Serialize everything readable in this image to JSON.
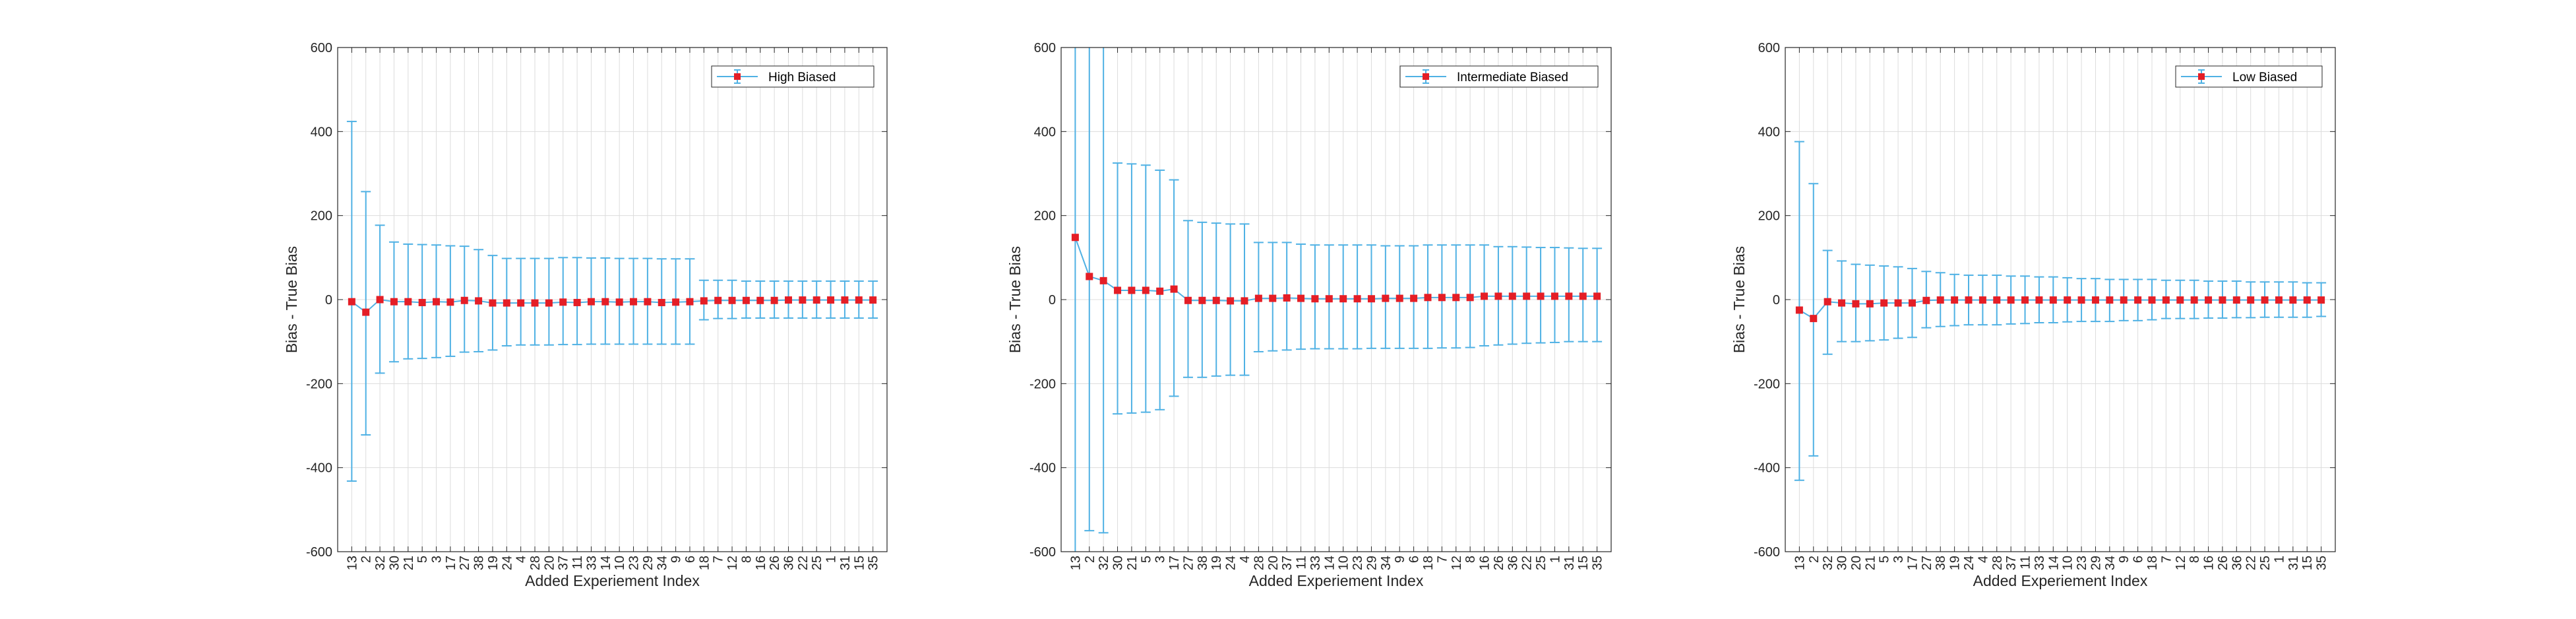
{
  "colors": {
    "errorbar": "#4fb1e4",
    "marker": "#e41e26",
    "axes": "#262626",
    "grid": "#dcdcdc",
    "background": "#ffffff"
  },
  "chart_data": [
    {
      "type": "line",
      "subtype": "errorbar",
      "xlabel": "Added Experiement Index",
      "ylabel": "Bias - True Bias",
      "ylim": [
        -600,
        600
      ],
      "yticks": [
        -600,
        -400,
        -200,
        0,
        200,
        400,
        600
      ],
      "grid": true,
      "legend_position": "top-right",
      "categories": [
        "13",
        "2",
        "32",
        "30",
        "21",
        "5",
        "3",
        "17",
        "27",
        "38",
        "19",
        "24",
        "4",
        "28",
        "20",
        "37",
        "11",
        "33",
        "14",
        "10",
        "23",
        "29",
        "34",
        "9",
        "6",
        "18",
        "7",
        "12",
        "8",
        "16",
        "26",
        "36",
        "22",
        "25",
        "1",
        "31",
        "15",
        "35"
      ],
      "series": [
        {
          "name": "High Biased",
          "values": [
            -5,
            -30,
            0,
            -5,
            -5,
            -7,
            -5,
            -6,
            -2,
            -3,
            -8,
            -8,
            -8,
            -8,
            -8,
            -6,
            -7,
            -5,
            -5,
            -6,
            -5,
            -5,
            -7,
            -6,
            -5,
            -3,
            -2,
            -2,
            -2,
            -2,
            -2,
            -1,
            -1,
            -1,
            -1,
            -1,
            -1,
            -1
          ],
          "lower": [
            -432,
            -322,
            -175,
            -148,
            -141,
            -140,
            -138,
            -135,
            -125,
            -124,
            -120,
            -110,
            -108,
            -108,
            -108,
            -107,
            -107,
            -106,
            -106,
            -106,
            -106,
            -106,
            -106,
            -106,
            -106,
            -48,
            -45,
            -45,
            -44,
            -44,
            -44,
            -44,
            -44,
            -44,
            -44,
            -44,
            -44,
            -44
          ],
          "upper": [
            424,
            257,
            177,
            137,
            132,
            131,
            130,
            128,
            127,
            119,
            105,
            98,
            98,
            98,
            98,
            100,
            100,
            99,
            99,
            98,
            98,
            98,
            97,
            97,
            97,
            46,
            46,
            46,
            44,
            44,
            44,
            44,
            44,
            44,
            44,
            44,
            44,
            44
          ]
        }
      ]
    },
    {
      "type": "line",
      "subtype": "errorbar",
      "xlabel": "Added Experiement Index",
      "ylabel": "Bias - True Bias",
      "ylim": [
        -600,
        600
      ],
      "yticks": [
        -600,
        -400,
        -200,
        0,
        200,
        400,
        600
      ],
      "grid": true,
      "legend_position": "top-right",
      "categories": [
        "13",
        "2",
        "32",
        "30",
        "21",
        "5",
        "3",
        "17",
        "27",
        "38",
        "19",
        "24",
        "4",
        "28",
        "20",
        "37",
        "11",
        "33",
        "14",
        "10",
        "23",
        "29",
        "34",
        "9",
        "6",
        "18",
        "7",
        "12",
        "8",
        "16",
        "26",
        "36",
        "22",
        "25",
        "1",
        "31",
        "15",
        "35"
      ],
      "series": [
        {
          "name": "Intermediate Biased",
          "values": [
            148,
            55,
            45,
            22,
            22,
            22,
            20,
            25,
            -2,
            -2,
            -2,
            -3,
            -3,
            3,
            3,
            4,
            3,
            2,
            2,
            2,
            2,
            2,
            3,
            3,
            3,
            5,
            5,
            5,
            5,
            8,
            8,
            8,
            8,
            8,
            8,
            8,
            8,
            8
          ],
          "lower": [
            -650,
            -550,
            -555,
            -272,
            -270,
            -268,
            -262,
            -230,
            -185,
            -185,
            -182,
            -180,
            -180,
            -124,
            -122,
            -120,
            -118,
            -117,
            -117,
            -117,
            -117,
            -116,
            -116,
            -116,
            -116,
            -116,
            -115,
            -115,
            -114,
            -110,
            -108,
            -106,
            -104,
            -103,
            -102,
            -100,
            -100,
            -100
          ],
          "upper": [
            950,
            700,
            650,
            325,
            323,
            320,
            308,
            285,
            188,
            184,
            182,
            180,
            180,
            136,
            136,
            136,
            132,
            130,
            130,
            130,
            130,
            130,
            128,
            128,
            128,
            130,
            130,
            130,
            130,
            130,
            126,
            126,
            125,
            124,
            124,
            123,
            122,
            122
          ]
        }
      ]
    },
    {
      "type": "line",
      "subtype": "errorbar",
      "xlabel": "Added Experiement Index",
      "ylabel": "Bias - True Bias",
      "ylim": [
        -600,
        600
      ],
      "yticks": [
        -600,
        -400,
        -200,
        0,
        200,
        400,
        600
      ],
      "grid": true,
      "legend_position": "top-right",
      "categories": [
        "13",
        "2",
        "32",
        "30",
        "20",
        "21",
        "5",
        "3",
        "17",
        "27",
        "38",
        "19",
        "24",
        "4",
        "28",
        "37",
        "11",
        "33",
        "14",
        "10",
        "23",
        "29",
        "34",
        "9",
        "6",
        "18",
        "7",
        "12",
        "8",
        "16",
        "26",
        "36",
        "22",
        "25",
        "1",
        "31",
        "15",
        "35"
      ],
      "series": [
        {
          "name": "Low Biased",
          "values": [
            -25,
            -45,
            -5,
            -8,
            -10,
            -10,
            -8,
            -8,
            -8,
            -2,
            -1,
            -1,
            -1,
            -1,
            -1,
            -1,
            -1,
            -1,
            -1,
            -1,
            -1,
            -1,
            -1,
            -1,
            -1,
            -1,
            -1,
            -1,
            -1,
            -1,
            -1,
            -1,
            -1,
            -1,
            -1,
            -1,
            -1,
            -1
          ],
          "lower": [
            -430,
            -372,
            -130,
            -100,
            -100,
            -98,
            -96,
            -92,
            -90,
            -67,
            -64,
            -62,
            -60,
            -60,
            -60,
            -58,
            -57,
            -55,
            -55,
            -53,
            -52,
            -52,
            -52,
            -50,
            -50,
            -48,
            -45,
            -45,
            -45,
            -44,
            -44,
            -43,
            -43,
            -42,
            -42,
            -42,
            -42,
            -40
          ],
          "upper": [
            376,
            276,
            117,
            92,
            84,
            82,
            80,
            78,
            74,
            67,
            64,
            60,
            58,
            58,
            58,
            56,
            56,
            54,
            54,
            52,
            50,
            50,
            48,
            48,
            48,
            48,
            46,
            46,
            46,
            44,
            44,
            44,
            42,
            42,
            42,
            42,
            40,
            40
          ]
        }
      ]
    }
  ]
}
